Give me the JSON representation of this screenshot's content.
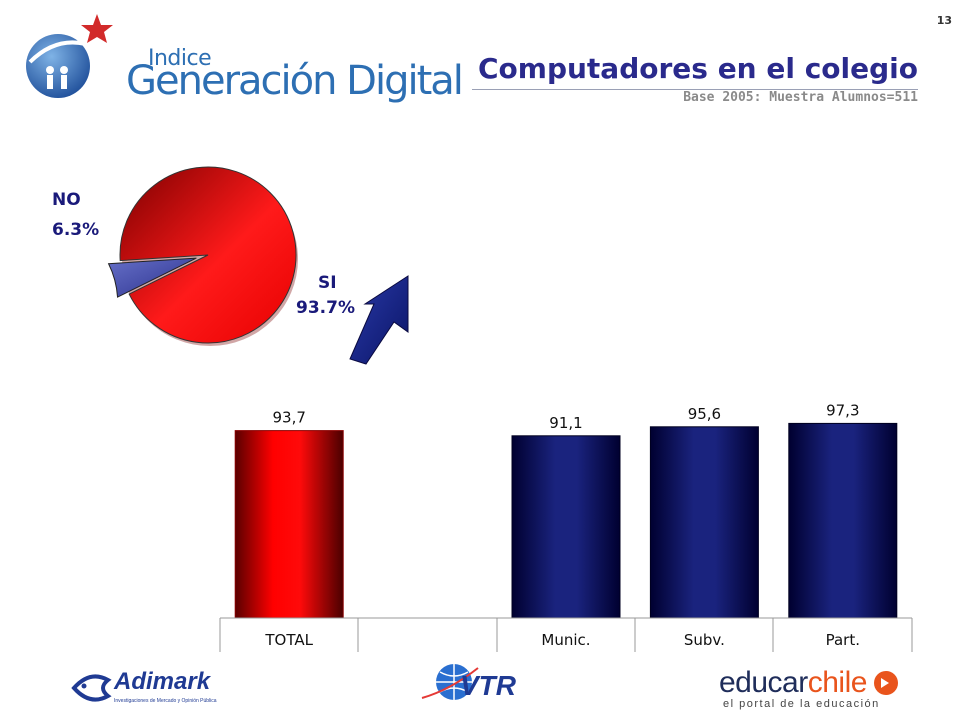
{
  "page_number": "13",
  "logo": {
    "indice": "Indice",
    "main": "Generación Digital"
  },
  "title": "Computadores en el colegio",
  "subtitle": "Base 2005: Muestra Alumnos=511",
  "colors": {
    "title": "#2a2a8c",
    "red": "#e00000",
    "navy": "#0a1466",
    "label_navy": "#1a1a7a"
  },
  "chart_data": [
    {
      "type": "pie",
      "slices": [
        {
          "label": "SI",
          "value": 93.7,
          "display": "93.7%"
        },
        {
          "label": "NO",
          "value": 6.3,
          "display": "6.3%"
        }
      ]
    },
    {
      "type": "bar",
      "categories": [
        "TOTAL",
        "",
        "Munic.",
        "Subv.",
        "Part."
      ],
      "values": [
        93.7,
        null,
        91.1,
        95.6,
        97.3
      ],
      "value_labels": [
        "93,7",
        "",
        "91,1",
        "95,6",
        "97,3"
      ],
      "ylim": [
        0,
        100
      ]
    }
  ],
  "footer": {
    "adimark": "Adimark",
    "adimark_sub": "Investigaciones de Mercado y Opinión Pública",
    "vtr": "VTR",
    "educar_a": "educar",
    "educar_b": "chile",
    "educar_sub": "el portal de la educación"
  }
}
